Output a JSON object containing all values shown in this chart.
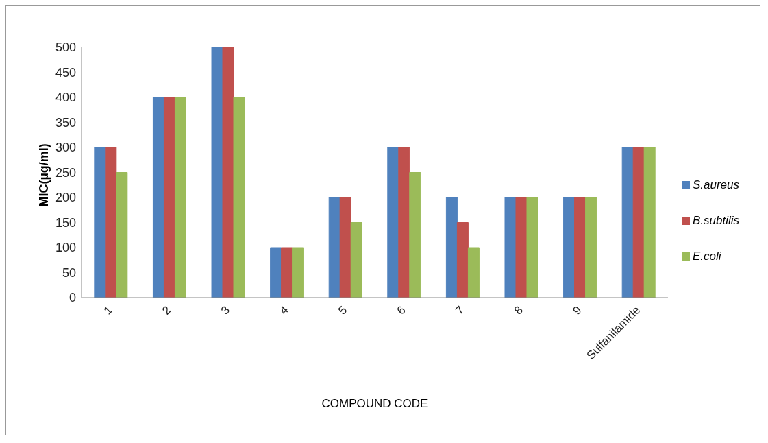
{
  "chart_data": {
    "type": "bar",
    "xlabel": "COMPOUND CODE",
    "ylabel": "MIC(µg/ml)",
    "categories": [
      "1",
      "2",
      "3",
      "4",
      "5",
      "6",
      "7",
      "8",
      "9",
      "Sulfanilamide"
    ],
    "series": [
      {
        "name": "S.aureus",
        "color": "#4f81bd",
        "values": [
          300,
          400,
          500,
          100,
          200,
          300,
          200,
          200,
          200,
          300
        ]
      },
      {
        "name": "B.subtilis",
        "color": "#c0504d",
        "values": [
          300,
          400,
          500,
          100,
          200,
          300,
          150,
          200,
          200,
          300
        ]
      },
      {
        "name": "E.coli",
        "color": "#9bbb59",
        "values": [
          250,
          400,
          400,
          100,
          150,
          250,
          100,
          200,
          200,
          300
        ]
      }
    ],
    "ylim": [
      0,
      500
    ],
    "yticks": [
      0,
      50,
      100,
      150,
      200,
      250,
      300,
      350,
      400,
      450,
      500
    ],
    "grid": false,
    "legend": "right"
  }
}
